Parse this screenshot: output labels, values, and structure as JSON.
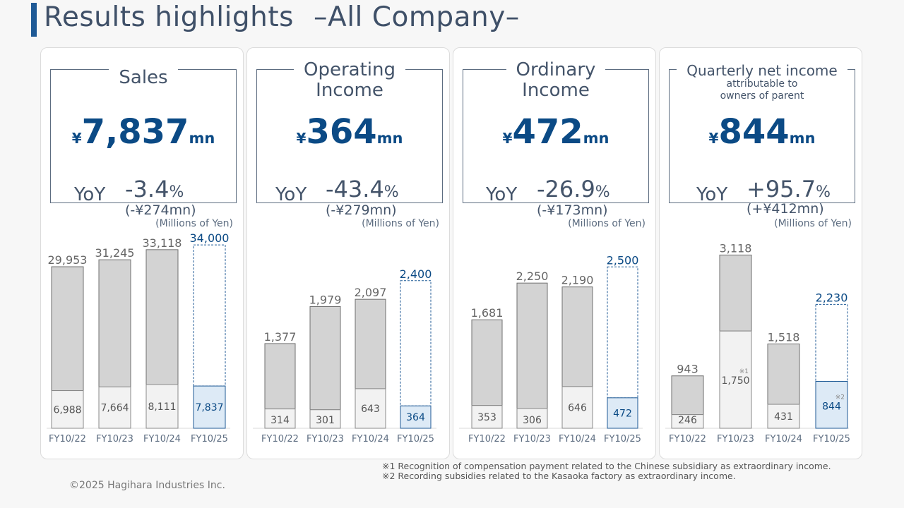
{
  "title": {
    "main": "Results highlights",
    "sub": "–All Company–"
  },
  "colors": {
    "accent": "#0b4a85",
    "bar_past": "#d3d3d3",
    "bar_h1_past": "#f2f2f2",
    "bar_h1_current": "#ddeaf6",
    "text": "#44546a"
  },
  "categories": [
    "FY10/22",
    "FY10/23",
    "FY10/24",
    "FY10/25"
  ],
  "panels": [
    {
      "label": "Sales",
      "sub": "",
      "yen": "¥",
      "value": "7,837",
      "unit": "mn",
      "yoy_label": "YoY",
      "yoy_pct": "-3.4",
      "pct_sign": "%",
      "yoy_amount": "(-¥274mn)",
      "units": "(Millions of Yen)"
    },
    {
      "label": "Operating\nIncome",
      "sub": "",
      "yen": "¥",
      "value": "364",
      "unit": "mn",
      "yoy_label": "YoY",
      "yoy_pct": "-43.4",
      "pct_sign": "%",
      "yoy_amount": "(-¥279mn)",
      "units": "(Millions of Yen)"
    },
    {
      "label": "Ordinary\nIncome",
      "sub": "",
      "yen": "¥",
      "value": "472",
      "unit": "mn",
      "yoy_label": "YoY",
      "yoy_pct": "-26.9",
      "pct_sign": "%",
      "yoy_amount": "(-¥173mn)",
      "units": "(Millions of Yen)"
    },
    {
      "label": "Quarterly net income",
      "sub": "attributable to\nowners of parent",
      "yen": "¥",
      "value": "844",
      "unit": "mn",
      "yoy_label": "YoY",
      "yoy_pct": "+95.7",
      "pct_sign": "%",
      "yoy_amount": "(+¥412mn)",
      "units": "(Millions of Yen)"
    }
  ],
  "chart_data": [
    {
      "type": "bar",
      "title": "Sales",
      "categories": [
        "FY10/22",
        "FY10/23",
        "FY10/24",
        "FY10/25"
      ],
      "series": [
        {
          "values": [
            6988,
            7664,
            8111,
            7837
          ]
        },
        {
          "values": [
            29953,
            31245,
            33118,
            34000
          ]
        }
      ],
      "labels_total": [
        "29,953",
        "31,245",
        "33,118",
        "34,000"
      ],
      "labels_h1": [
        "6,988",
        "7,664",
        "8,111",
        "7,837"
      ],
      "marks": [
        "",
        "",
        "",
        ""
      ],
      "ylim": [
        0,
        36500
      ]
    },
    {
      "type": "bar",
      "title": "Operating Income",
      "categories": [
        "FY10/22",
        "FY10/23",
        "FY10/24",
        "FY10/25"
      ],
      "series": [
        {
          "values": [
            314,
            301,
            643,
            364
          ]
        },
        {
          "values": [
            1377,
            1979,
            2097,
            2400
          ]
        }
      ],
      "labels_total": [
        "1,377",
        "1,979",
        "2,097",
        "2,400"
      ],
      "labels_h1": [
        "314",
        "301",
        "643",
        "364"
      ],
      "marks": [
        "",
        "",
        "",
        ""
      ],
      "ylim": [
        0,
        3200
      ]
    },
    {
      "type": "bar",
      "title": "Ordinary Income",
      "categories": [
        "FY10/22",
        "FY10/23",
        "FY10/24",
        "FY10/25"
      ],
      "series": [
        {
          "values": [
            353,
            306,
            646,
            472
          ]
        },
        {
          "values": [
            1681,
            2250,
            2190,
            2500
          ]
        }
      ],
      "labels_total": [
        "1,681",
        "2,250",
        "2,190",
        "2,500"
      ],
      "labels_h1": [
        "353",
        "306",
        "646",
        "472"
      ],
      "marks": [
        "",
        "",
        "",
        ""
      ],
      "ylim": [
        0,
        3050
      ]
    },
    {
      "type": "bar",
      "title": "Quarterly net income attributable to owners of parent",
      "categories": [
        "FY10/22",
        "FY10/23",
        "FY10/24",
        "FY10/25"
      ],
      "series": [
        {
          "values": [
            246,
            1750,
            431,
            844
          ]
        },
        {
          "values": [
            943,
            3118,
            1518,
            2230
          ]
        }
      ],
      "labels_total": [
        "943",
        "3,118",
        "1,518",
        "2,230"
      ],
      "labels_h1": [
        "246",
        "1,750",
        "431",
        "844"
      ],
      "marks": [
        "",
        "※1",
        "",
        "※2"
      ],
      "ylim": [
        0,
        3860
      ]
    }
  ],
  "footnotes": [
    "※1 Recognition of compensation payment related to the Chinese subsidiary as extraordinary income.",
    "※2 Recording subsidies related to the Kasaoka factory as extraordinary income."
  ],
  "copyright": "©2025 Hagihara Industries Inc."
}
